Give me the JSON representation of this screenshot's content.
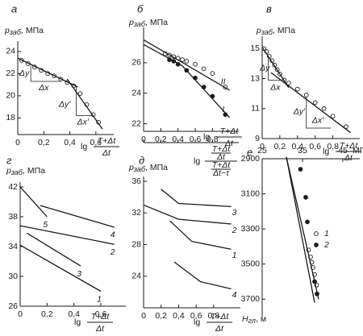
{
  "chart_data": [
    {
      "type": "scatter",
      "panel": "а",
      "color": "#1a1a1a",
      "ylabel": {
        "symbol": "р",
        "sub": "заб",
        "unit": ", МПа"
      },
      "xlabel": {
        "prefix": "lg",
        "num": "T+Δt",
        "den": "Δt"
      },
      "xlim": [
        0,
        0.7
      ],
      "ylim": [
        16.5,
        24.5
      ],
      "xticks": [
        0,
        {
          "value": 0.2,
          "label": "0,2"
        },
        {
          "value": 0.4,
          "label": "0,4"
        },
        {
          "value": 0.6,
          "label": "0,6"
        }
      ],
      "yticks": [
        18,
        20,
        22,
        24
      ],
      "annotations": [
        "Δy",
        "Δx",
        "Δy'",
        "Δx'"
      ],
      "series": [
        {
          "marker": "open",
          "x": [
            0.03,
            0.08,
            0.13,
            0.18,
            0.23,
            0.28,
            0.33,
            0.38,
            0.43,
            0.48,
            0.53,
            0.58,
            0.62
          ],
          "values": [
            23.2,
            22.9,
            22.6,
            22.3,
            22.0,
            21.8,
            21.5,
            21.2,
            20.9,
            20.2,
            19.2,
            18.3,
            17.6
          ]
        },
        {
          "line": true,
          "x": [
            0,
            0.46
          ],
          "values": [
            23.4,
            20.8
          ]
        },
        {
          "line": true,
          "x": [
            0.38,
            0.65
          ],
          "values": [
            21.5,
            17.0
          ]
        }
      ]
    },
    {
      "type": "scatter",
      "panel": "б",
      "color": "#1a1a1a",
      "ylabel": {
        "symbol": "р",
        "sub": "заб",
        "unit": ", МПа"
      },
      "xlabel": {
        "prefix": "lg",
        "num": "T+Δt",
        "den": "Δt"
      },
      "x2label": {
        "prefix": "lg",
        "num": {
          "num": "T+Δt",
          "den": "Δt"
        },
        "den": {
          "num": "T+Δt",
          "den": "Δt−τ"
        }
      },
      "xlim": [
        0,
        1.05
      ],
      "ylim": [
        21.5,
        28
      ],
      "xticks": [
        0,
        {
          "value": 0.2,
          "label": "0,2"
        },
        {
          "value": 0.4,
          "label": "0,4"
        },
        {
          "value": 0.6,
          "label": "0,6"
        },
        {
          "value": 0.8,
          "label": "0,8"
        }
      ],
      "x2ticks": [
        0,
        0.2,
        0.4,
        0.6,
        0.8
      ],
      "yticks": [
        22,
        24,
        26
      ],
      "series": [
        {
          "marker": "open",
          "x": [
            0.25,
            0.3,
            0.35,
            0.4,
            0.45,
            0.5,
            0.6,
            0.7,
            0.8,
            0.95
          ],
          "values": [
            26.6,
            26.5,
            26.4,
            26.3,
            26.2,
            26.1,
            25.9,
            25.6,
            25.3,
            24.4
          ]
        },
        {
          "marker": "filled",
          "x": [
            0.3,
            0.35,
            0.4,
            0.5,
            0.6,
            0.7,
            0.8,
            0.95
          ],
          "values": [
            26.2,
            26.1,
            25.9,
            25.5,
            25.0,
            24.4,
            23.8,
            22.6
          ]
        },
        {
          "name": "II",
          "line": true,
          "x": [
            0,
            1.0
          ],
          "values": [
            27.5,
            24.2
          ]
        },
        {
          "name": "I",
          "line": true,
          "x": [
            0,
            0.45,
            1.0
          ],
          "values": [
            27.2,
            25.8,
            22.4
          ]
        }
      ]
    },
    {
      "type": "scatter",
      "panel": "в",
      "color": "#1a1a1a",
      "ylabel": {
        "symbol": "р",
        "sub": "заб",
        "unit": ", МПа"
      },
      "xlabel": {
        "prefix": "lg",
        "num": "T+Δt",
        "den": "Δt"
      },
      "xlim": [
        0,
        1.05
      ],
      "ylim": [
        9,
        15.5
      ],
      "xticks": [
        0,
        {
          "value": 0.2,
          "label": "0,2"
        },
        {
          "value": 0.4,
          "label": "0,4"
        },
        {
          "value": 0.6,
          "label": "0,6"
        },
        {
          "value": 0.8,
          "label": "0,8"
        }
      ],
      "yticks": [
        9,
        11,
        13,
        15
      ],
      "annotations": [
        "Δy",
        "Δx",
        "Δy'",
        "Δx'"
      ],
      "series": [
        {
          "marker": "open",
          "x": [
            0.02,
            0.05,
            0.08,
            0.11,
            0.14,
            0.17,
            0.2,
            0.25,
            0.3,
            0.4,
            0.5,
            0.6,
            0.7,
            0.8,
            0.95
          ],
          "values": [
            15.0,
            14.8,
            14.5,
            14.2,
            13.9,
            13.6,
            13.3,
            12.9,
            12.7,
            12.3,
            11.9,
            11.4,
            11.0,
            10.5,
            9.8
          ]
        },
        {
          "line": true,
          "x": [
            0,
            0.3
          ],
          "values": [
            15.1,
            12.4
          ]
        },
        {
          "line": true,
          "x": [
            0.1,
            1.0
          ],
          "values": [
            13.4,
            9.4
          ]
        }
      ]
    },
    {
      "type": "line",
      "panel": "г",
      "color": "#1a1a1a",
      "ylabel": {
        "symbol": "р",
        "sub": "заб",
        "unit": ", МПа"
      },
      "xlabel": {
        "prefix": "lg",
        "num": "T+Δt",
        "den": "Δt"
      },
      "xlim": [
        0,
        0.75
      ],
      "ylim": [
        26,
        42
      ],
      "xticks": [
        0,
        {
          "value": 0.2,
          "label": "0,2"
        },
        {
          "value": 0.4,
          "label": "0,4"
        },
        {
          "value": 0.6,
          "label": "0,6"
        }
      ],
      "yticks": [
        26,
        30,
        34,
        38,
        42
      ],
      "series": [
        {
          "name": "1",
          "line": true,
          "x": [
            0,
            0.6
          ],
          "values": [
            34.2,
            28.0
          ]
        },
        {
          "name": "2",
          "line": true,
          "x": [
            0,
            0.7
          ],
          "values": [
            36.8,
            34.3
          ]
        },
        {
          "name": "3",
          "line": true,
          "x": [
            0.05,
            0.45
          ],
          "values": [
            35.8,
            31.4
          ]
        },
        {
          "name": "4",
          "line": true,
          "x": [
            0.15,
            0.7
          ],
          "values": [
            39.5,
            36.6
          ]
        },
        {
          "name": "5",
          "line": true,
          "x": [
            0,
            0.2
          ],
          "values": [
            42.0,
            38.0
          ]
        }
      ]
    },
    {
      "type": "line",
      "panel": "д",
      "color": "#1a1a1a",
      "ylabel": {
        "symbol": "р",
        "sub": "заб",
        "unit": ", МПа"
      },
      "xlabel": {
        "prefix": "lg",
        "num": "T+Δt",
        "den": "Δt"
      },
      "xlim": [
        0,
        1.05
      ],
      "ylim": [
        20,
        36
      ],
      "xticks": [
        0,
        {
          "value": 0.2,
          "label": "0,2"
        },
        {
          "value": 0.4,
          "label": "0,4"
        },
        {
          "value": 0.6,
          "label": "0,6"
        },
        {
          "value": 0.8,
          "label": "0,8"
        }
      ],
      "yticks": [
        24,
        28,
        32,
        36
      ],
      "series": [
        {
          "name": "3",
          "line": true,
          "x": [
            0.2,
            0.4,
            1.0
          ],
          "values": [
            35.0,
            33.2,
            32.8
          ]
        },
        {
          "name": "2",
          "line": true,
          "x": [
            0,
            0.4,
            1.0
          ],
          "values": [
            33.0,
            31.2,
            30.6
          ]
        },
        {
          "name": "1",
          "line": true,
          "x": [
            0.3,
            0.55,
            1.0
          ],
          "values": [
            31.0,
            28.4,
            27.4
          ]
        },
        {
          "name": "4",
          "line": true,
          "x": [
            0.35,
            0.65,
            1.0
          ],
          "values": [
            25.8,
            23.3,
            22.4
          ]
        }
      ]
    },
    {
      "type": "scatter",
      "panel": "е",
      "color": "#1a1a1a",
      "y_inverted": true,
      "x_axis_top": true,
      "legend": true,
      "ylabel": {
        "symbol": "H",
        "sub": "гл",
        "unit": ", м"
      },
      "xunit": "МПа",
      "xlim": [
        25,
        48
      ],
      "ylim": [
        2900,
        3800
      ],
      "xticks": [
        25,
        35,
        45
      ],
      "yticks": [
        2900,
        3100,
        3300,
        3500,
        3700
      ],
      "series": [
        {
          "name": "1",
          "marker": "open",
          "x": [
            36.5,
            37.0,
            37.3,
            37.6,
            38.0,
            38.5
          ],
          "values": [
            3420,
            3460,
            3490,
            3520,
            3560,
            3620
          ]
        },
        {
          "name": "2",
          "marker": "filled",
          "x": [
            34.5,
            35.8,
            36.2,
            38.0,
            38.6
          ],
          "values": [
            2960,
            3120,
            3260,
            3600,
            3670
          ]
        },
        {
          "line": true,
          "x": [
            31,
            39
          ],
          "values": [
            2890,
            3700
          ]
        },
        {
          "line": true,
          "x": [
            31,
            38
          ],
          "values": [
            2890,
            3720
          ]
        }
      ]
    }
  ]
}
